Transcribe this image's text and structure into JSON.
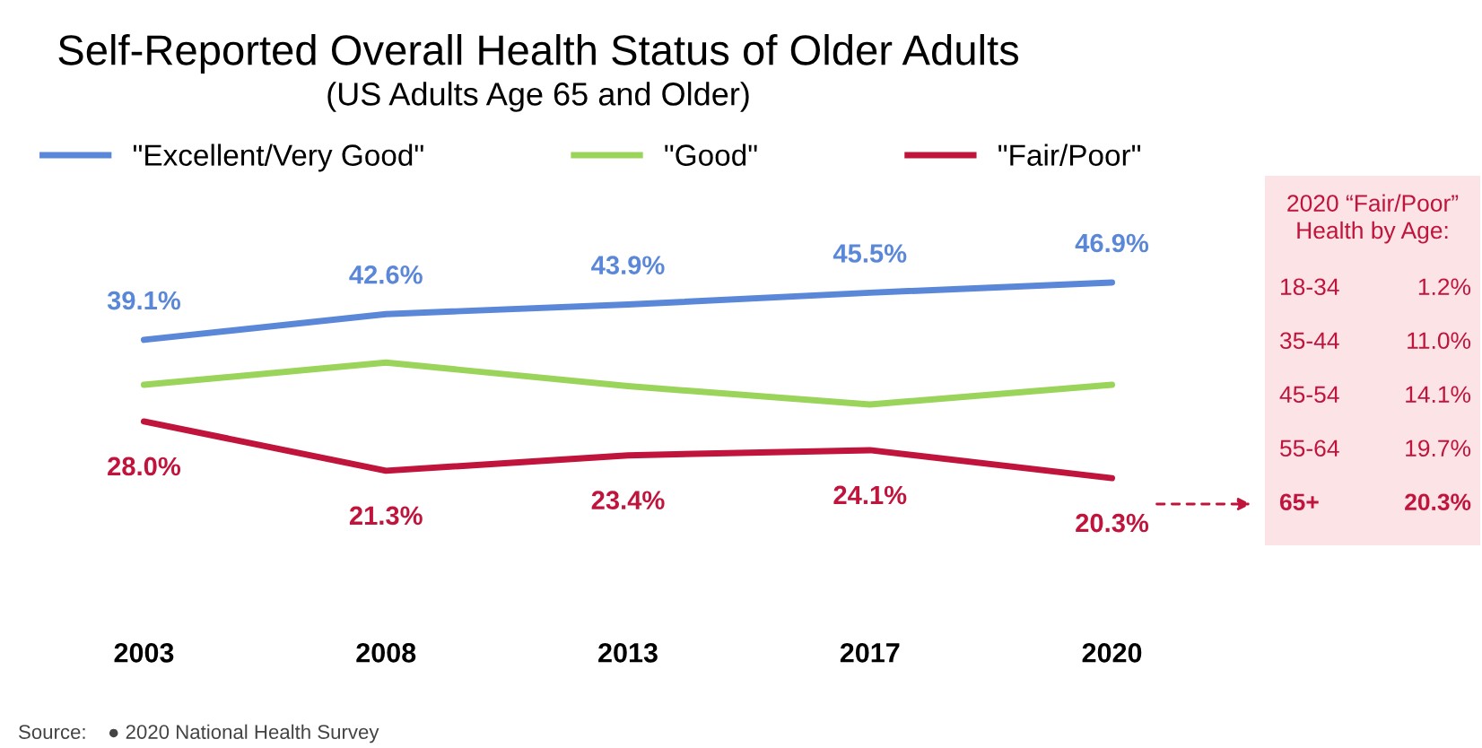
{
  "chart_data": {
    "type": "line",
    "title": "Self-Reported Overall Health Status of Older Adults",
    "subtitle": "(US Adults Age 65 and Older)",
    "categories": [
      "2003",
      "2008",
      "2013",
      "2017",
      "2020"
    ],
    "series": [
      {
        "name": "\"Excellent/Very Good\"",
        "color": "#5b87d9",
        "values": [
          39.1,
          42.6,
          43.9,
          45.5,
          46.9
        ],
        "value_labels": [
          "39.1%",
          "42.6%",
          "43.9%",
          "45.5%",
          "46.9%"
        ]
      },
      {
        "name": "\"Good\"",
        "color": "#9bd45a",
        "values": [
          33.0,
          36.0,
          32.8,
          30.3,
          33.0
        ]
      },
      {
        "name": "\"Fair/Poor\"",
        "color": "#c0143c",
        "values": [
          28.0,
          21.3,
          23.4,
          24.1,
          20.3
        ],
        "value_labels": [
          "28.0%",
          "21.3%",
          "23.4%",
          "24.1%",
          "20.3%"
        ]
      }
    ],
    "legend": "top",
    "grid": false,
    "marker": "none",
    "line_style": "solid",
    "annotations": [
      "Source:",
      "● 2020 National Health Survey",
      "2020 “Fair/Poor”\nHealth by Age:",
      "18-34",
      "1.2%",
      "35-44",
      "11.0%",
      "45-54",
      "14.1%",
      "55-64",
      "19.7%",
      "65+",
      "20.3%"
    ]
  }
}
